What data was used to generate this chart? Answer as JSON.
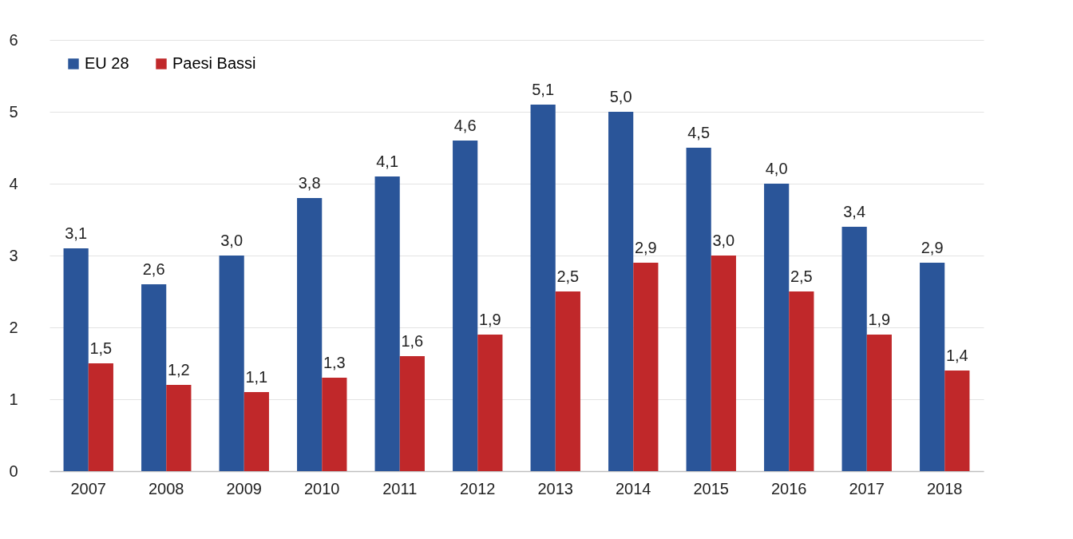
{
  "chart_data": {
    "type": "bar",
    "categories": [
      "2007",
      "2008",
      "2009",
      "2010",
      "2011",
      "2012",
      "2013",
      "2014",
      "2015",
      "2016",
      "2017",
      "2018"
    ],
    "series": [
      {
        "name": "EU 28",
        "color": "#2a5599",
        "values": [
          3.1,
          2.6,
          3.0,
          3.8,
          4.1,
          4.6,
          5.1,
          5.0,
          4.5,
          4.0,
          3.4,
          2.9
        ],
        "value_labels": [
          "3,1",
          "2,6",
          "3,0",
          "3,8",
          "4,1",
          "4,6",
          "5,1",
          "5,0",
          "4,5",
          "4,0",
          "3,4",
          "2,9"
        ]
      },
      {
        "name": "Paesi Bassi",
        "color": "#c0282a",
        "values": [
          1.5,
          1.2,
          1.1,
          1.3,
          1.6,
          1.9,
          2.5,
          2.9,
          3.0,
          2.5,
          1.9,
          1.4
        ],
        "value_labels": [
          "1,5",
          "1,2",
          "1,1",
          "1,3",
          "1,6",
          "1,9",
          "2,5",
          "2,9",
          "3,0",
          "2,5",
          "1,9",
          "1,4"
        ]
      }
    ],
    "ylim": [
      0,
      6
    ],
    "yticks": [
      0,
      1,
      2,
      3,
      4,
      5,
      6
    ],
    "grid": "y",
    "legend": "top left"
  }
}
